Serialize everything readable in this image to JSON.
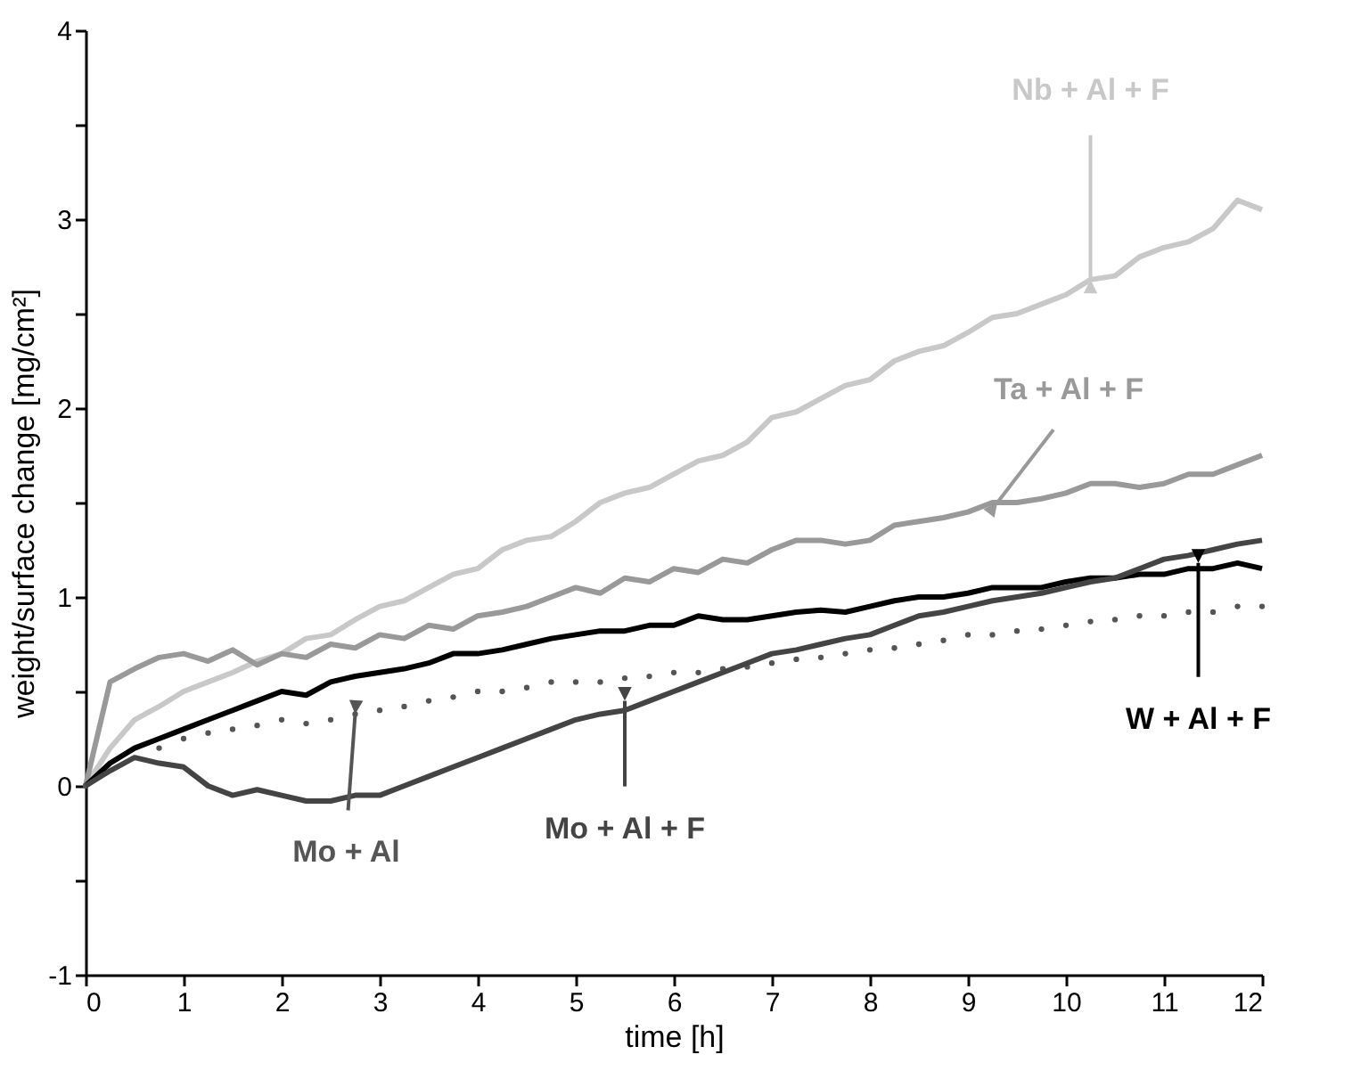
{
  "chart_data": {
    "type": "line",
    "xlabel": "time [h]",
    "ylabel": "weight/surface change [mg/cm²]",
    "x": [
      0,
      0.25,
      0.5,
      0.75,
      1,
      1.25,
      1.5,
      1.75,
      2,
      2.25,
      2.5,
      2.75,
      3,
      3.25,
      3.5,
      3.75,
      4,
      4.25,
      4.5,
      4.75,
      5,
      5.25,
      5.5,
      5.75,
      6,
      6.25,
      6.5,
      6.75,
      7,
      7.25,
      7.5,
      7.75,
      8,
      8.25,
      8.5,
      8.75,
      9,
      9.25,
      9.5,
      9.75,
      10,
      10.25,
      10.5,
      10.75,
      11,
      11.25,
      11.5,
      11.75,
      12
    ],
    "series": [
      {
        "color": "#c8c8c8",
        "values": [
          0,
          0.2,
          0.35,
          0.42,
          0.5,
          0.55,
          0.6,
          0.66,
          0.7,
          0.78,
          0.8,
          0.88,
          0.95,
          0.98,
          1.05,
          1.12,
          1.15,
          1.25,
          1.3,
          1.32,
          1.4,
          1.5,
          1.55,
          1.58,
          1.65,
          1.72,
          1.75,
          1.82,
          1.95,
          1.98,
          2.05,
          2.12,
          2.15,
          2.25,
          2.3,
          2.33,
          2.4,
          2.48,
          2.5,
          2.55,
          2.6,
          2.68,
          2.7,
          2.8,
          2.85,
          2.88,
          2.95,
          3.1,
          3.05
        ]
      },
      {
        "color": "#999999",
        "values": [
          0,
          0.55,
          0.62,
          0.68,
          0.7,
          0.66,
          0.72,
          0.64,
          0.7,
          0.68,
          0.75,
          0.73,
          0.8,
          0.78,
          0.85,
          0.83,
          0.9,
          0.92,
          0.95,
          1.0,
          1.05,
          1.02,
          1.1,
          1.08,
          1.15,
          1.13,
          1.2,
          1.18,
          1.25,
          1.3,
          1.3,
          1.28,
          1.3,
          1.38,
          1.4,
          1.42,
          1.45,
          1.5,
          1.5,
          1.52,
          1.55,
          1.6,
          1.6,
          1.58,
          1.6,
          1.65,
          1.65,
          1.7,
          1.75
        ]
      },
      {
        "color": "#000000",
        "values": [
          0,
          0.12,
          0.2,
          0.25,
          0.3,
          0.35,
          0.4,
          0.45,
          0.5,
          0.48,
          0.55,
          0.58,
          0.6,
          0.62,
          0.65,
          0.7,
          0.7,
          0.72,
          0.75,
          0.78,
          0.8,
          0.82,
          0.82,
          0.85,
          0.85,
          0.9,
          0.88,
          0.88,
          0.9,
          0.92,
          0.93,
          0.92,
          0.95,
          0.98,
          1.0,
          1.0,
          1.02,
          1.05,
          1.05,
          1.05,
          1.08,
          1.1,
          1.1,
          1.12,
          1.12,
          1.15,
          1.15,
          1.18,
          1.15
        ]
      },
      {
        "type": "scatter",
        "color": "#555555",
        "marker": "circle",
        "values": [
          0,
          null,
          null,
          0.2,
          0.25,
          0.28,
          0.3,
          0.32,
          0.35,
          0.33,
          0.35,
          0.38,
          0.4,
          0.42,
          0.45,
          0.47,
          0.5,
          0.5,
          0.52,
          0.55,
          0.55,
          0.55,
          0.57,
          0.58,
          0.6,
          0.6,
          0.62,
          0.63,
          0.65,
          0.67,
          0.68,
          0.7,
          0.72,
          0.73,
          0.75,
          0.77,
          0.8,
          0.8,
          0.82,
          0.83,
          0.85,
          0.87,
          0.88,
          0.9,
          0.9,
          0.92,
          0.92,
          0.95,
          0.95
        ]
      },
      {
        "color": "#444444",
        "values": [
          0,
          0.08,
          0.15,
          0.12,
          0.1,
          0.0,
          -0.05,
          -0.02,
          -0.05,
          -0.08,
          -0.08,
          -0.05,
          -0.05,
          0.0,
          0.05,
          0.1,
          0.15,
          0.2,
          0.25,
          0.3,
          0.35,
          0.38,
          0.4,
          0.45,
          0.5,
          0.55,
          0.6,
          0.65,
          0.7,
          0.72,
          0.75,
          0.78,
          0.8,
          0.85,
          0.9,
          0.92,
          0.95,
          0.98,
          1.0,
          1.02,
          1.05,
          1.08,
          1.1,
          1.15,
          1.2,
          1.22,
          1.25,
          1.28,
          1.3
        ]
      }
    ],
    "annotations": [
      {
        "text": "Nb + Al + F",
        "x": 10.25,
        "y": 2.68
      },
      {
        "text": "Ta + Al + F",
        "x": 9.3,
        "y": 1.5
      },
      {
        "text": "W + Al + F",
        "x": 11.35,
        "y": 1.18
      },
      {
        "text": "Mo + Al",
        "x": 2.75,
        "y": 0.38
      },
      {
        "text": "Mo + Al + F",
        "x": 5.5,
        "y": 0.45
      }
    ],
    "xlim": [
      0,
      12
    ],
    "xticks": [
      0,
      1,
      2,
      3,
      4,
      5,
      6,
      7,
      8,
      9,
      10,
      11,
      12
    ],
    "ylim": [
      -1,
      4
    ],
    "yticks": [
      -1,
      {
        "value": -0.5,
        "label": null
      },
      0,
      {
        "value": 0.5,
        "label": null
      },
      1,
      {
        "value": 1.5,
        "label": null
      },
      2,
      {
        "value": 2.5,
        "label": null
      },
      3,
      {
        "value": 3.5,
        "label": null
      },
      4
    ],
    "grid": false
  }
}
